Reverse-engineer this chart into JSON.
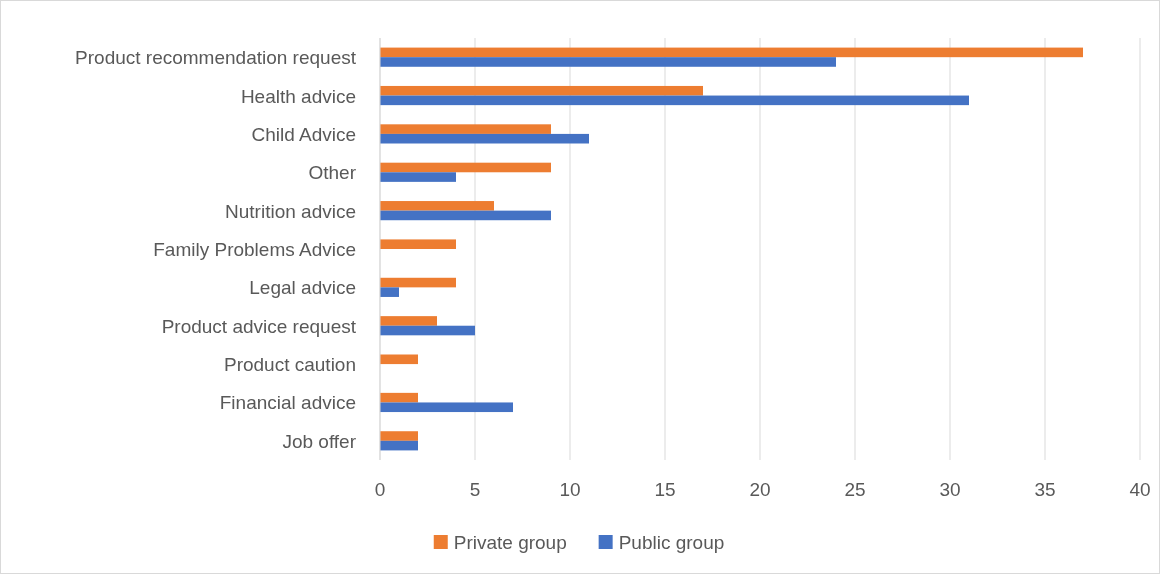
{
  "chart_data": {
    "type": "bar",
    "orientation": "horizontal",
    "categories": [
      "Product recommendation request",
      "Health advice",
      "Child Advice",
      "Other",
      "Nutrition advice",
      "Family Problems Advice",
      "Legal advice",
      "Product advice request",
      "Product caution",
      "Financial advice",
      "Job offer"
    ],
    "series": [
      {
        "name": "Private group",
        "color": "#ed7d31",
        "values": [
          37,
          17,
          9,
          9,
          6,
          4,
          4,
          3,
          2,
          2,
          2
        ]
      },
      {
        "name": "Public group",
        "color": "#4472c4",
        "values": [
          24,
          31,
          11,
          4,
          9,
          0,
          1,
          5,
          0,
          7,
          2
        ]
      }
    ],
    "xlim": [
      0,
      40
    ],
    "xticks": [
      0,
      5,
      10,
      15,
      20,
      25,
      30,
      35,
      40
    ],
    "grid": "x",
    "legend": "bottom"
  }
}
